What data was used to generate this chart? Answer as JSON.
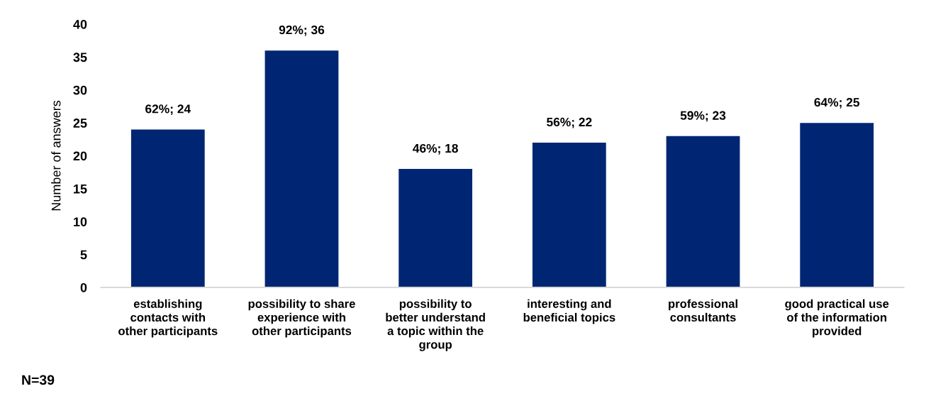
{
  "chart_data": {
    "type": "bar",
    "ylabel": "Number of answers",
    "categories": [
      "establishing\ncontacts with\nother participants",
      "possibility to share\nexperience with\nother participants",
      "possibility to\nbetter understand\na topic within the\ngroup",
      "interesting and\nbeneficial topics",
      "professional\nconsultants",
      "good practical use\nof the information\nprovided"
    ],
    "values": [
      24,
      36,
      18,
      22,
      23,
      25
    ],
    "value_labels": [
      "62%; 24",
      "92%; 36",
      "46%; 18",
      "56%; 22",
      "59%; 23",
      "64%; 25"
    ],
    "color": "#002673",
    "ylim": [
      0,
      40
    ],
    "yticks": [
      0,
      5,
      10,
      15,
      20,
      25,
      30,
      35,
      40
    ],
    "grid": false,
    "legend": false,
    "annotations": [
      "N=39"
    ]
  }
}
